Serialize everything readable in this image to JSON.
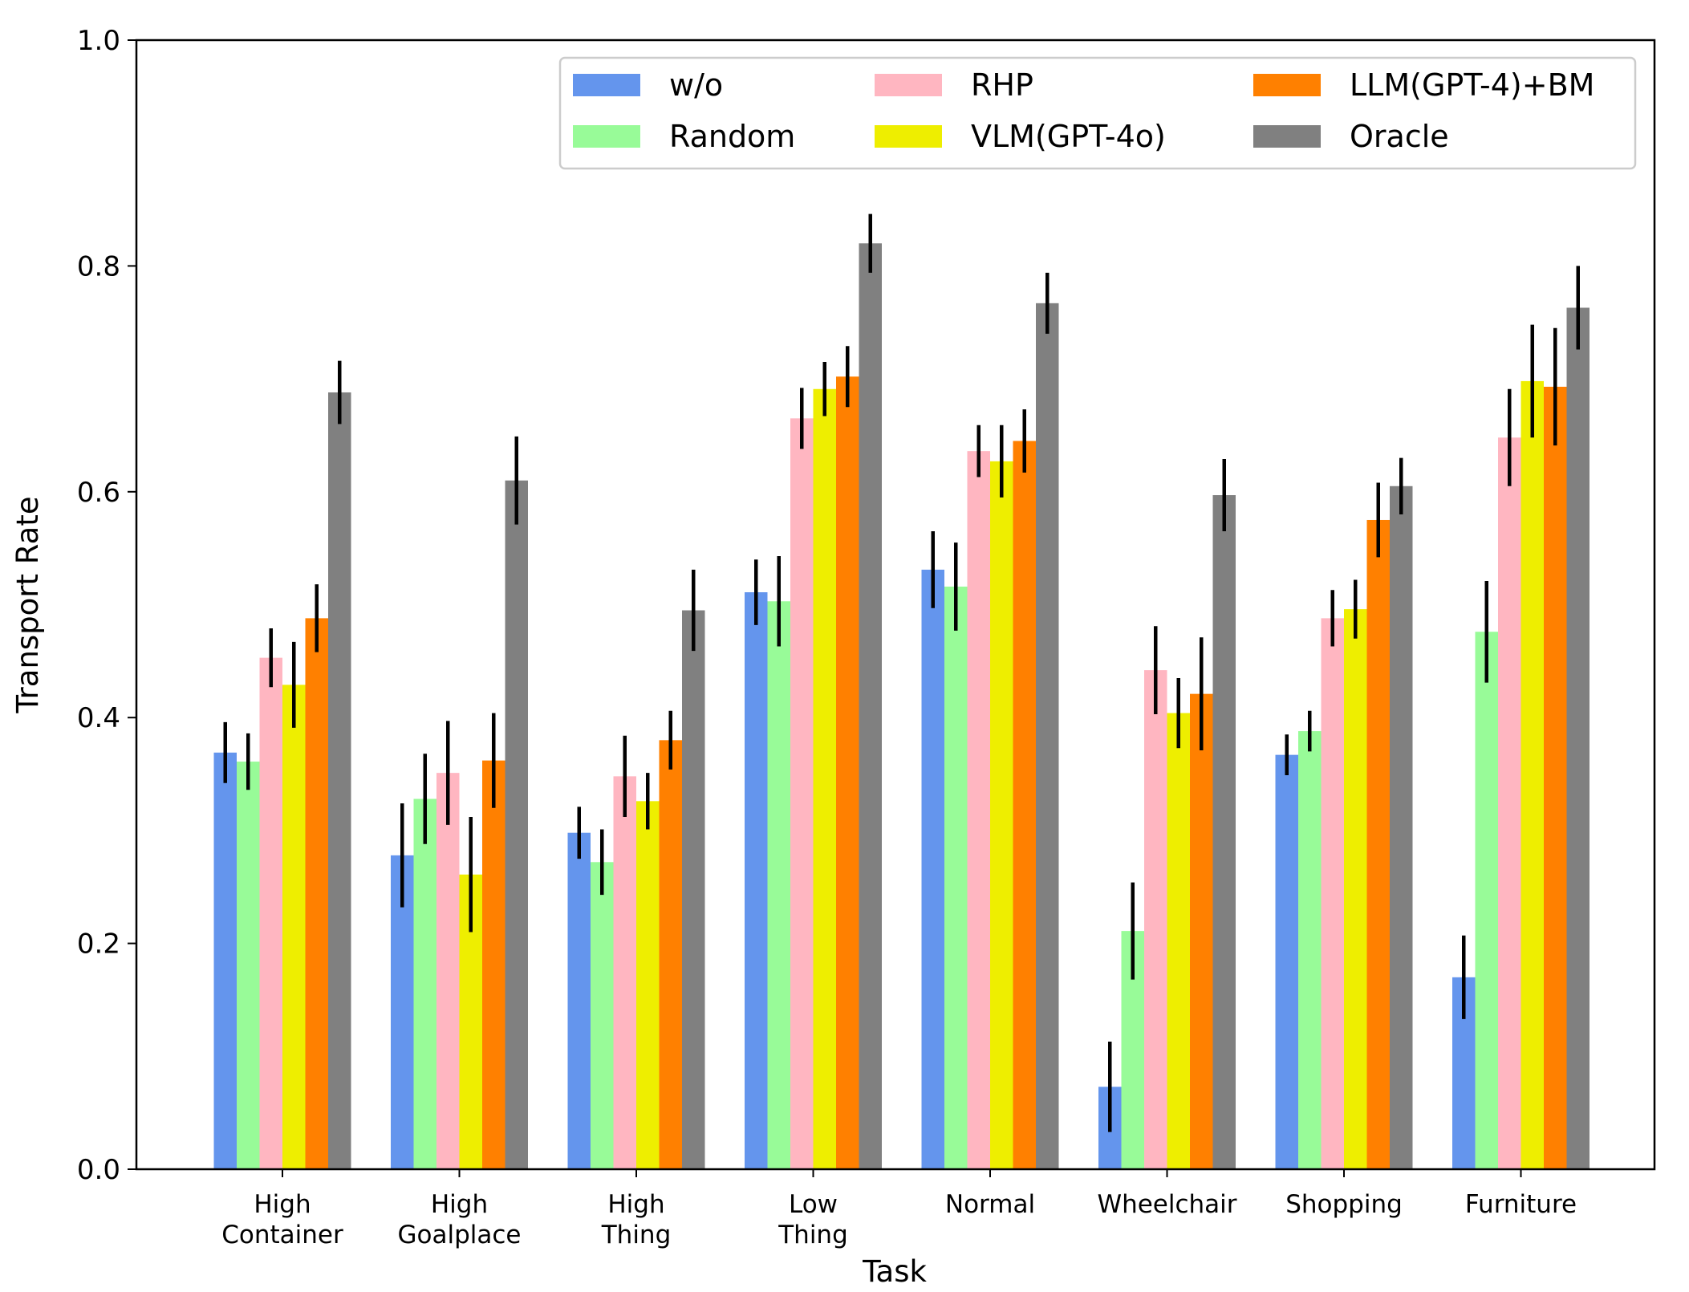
{
  "chart_data": {
    "type": "bar",
    "title": "",
    "xlabel": "Task",
    "ylabel": "Transport Rate",
    "ylim": [
      0,
      1.0
    ],
    "yticks": [
      0.0,
      0.2,
      0.4,
      0.6,
      0.8,
      1.0
    ],
    "ytick_labels": [
      "0.0",
      "0.2",
      "0.4",
      "0.6",
      "0.8",
      "1.0"
    ],
    "legend_position": "top-right",
    "categories": [
      [
        "High",
        "Container"
      ],
      [
        "High",
        "Goalplace"
      ],
      [
        "High",
        "Thing"
      ],
      [
        "Low",
        "Thing"
      ],
      [
        "Normal"
      ],
      [
        "Wheelchair"
      ],
      [
        "Shopping"
      ],
      [
        "Furniture"
      ]
    ],
    "series": [
      {
        "name": "w/o",
        "color": "#6495ED",
        "values": [
          0.369,
          0.278,
          0.298,
          0.511,
          0.531,
          0.073,
          0.367,
          0.17
        ],
        "errors": [
          0.027,
          0.046,
          0.023,
          0.029,
          0.034,
          0.04,
          0.018,
          0.037
        ]
      },
      {
        "name": "Random",
        "color": "#98FB98",
        "values": [
          0.361,
          0.328,
          0.272,
          0.503,
          0.516,
          0.211,
          0.388,
          0.476
        ],
        "errors": [
          0.025,
          0.04,
          0.029,
          0.04,
          0.039,
          0.043,
          0.018,
          0.045
        ]
      },
      {
        "name": "RHP",
        "color": "#FFB6C1",
        "values": [
          0.453,
          0.351,
          0.348,
          0.665,
          0.636,
          0.442,
          0.488,
          0.648
        ],
        "errors": [
          0.026,
          0.046,
          0.036,
          0.027,
          0.023,
          0.039,
          0.025,
          0.043
        ]
      },
      {
        "name": "VLM(GPT-4o)",
        "color": "#EEEE00",
        "values": [
          0.429,
          0.261,
          0.326,
          0.691,
          0.627,
          0.404,
          0.496,
          0.698
        ],
        "errors": [
          0.038,
          0.051,
          0.025,
          0.024,
          0.032,
          0.031,
          0.026,
          0.05
        ]
      },
      {
        "name": "LLM(GPT-4)+BM",
        "color": "#FF8000",
        "values": [
          0.488,
          0.362,
          0.38,
          0.702,
          0.645,
          0.421,
          0.575,
          0.693
        ],
        "errors": [
          0.03,
          0.042,
          0.026,
          0.027,
          0.028,
          0.05,
          0.033,
          0.052
        ]
      },
      {
        "name": "Oracle",
        "color": "#808080",
        "values": [
          0.688,
          0.61,
          0.495,
          0.82,
          0.767,
          0.597,
          0.605,
          0.763
        ],
        "errors": [
          0.028,
          0.039,
          0.036,
          0.026,
          0.027,
          0.032,
          0.025,
          0.037
        ]
      }
    ]
  }
}
